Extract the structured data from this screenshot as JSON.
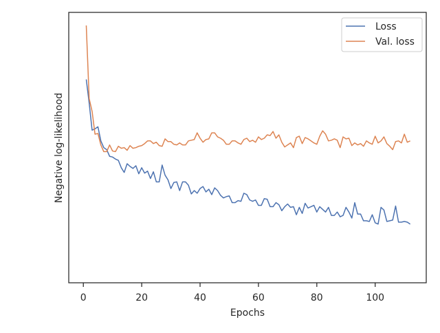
{
  "chart_data": {
    "type": "line",
    "title": "",
    "xlabel": "Epochs",
    "ylabel": "Negative log-likelihood",
    "xlim": [
      -5,
      117.5
    ],
    "ylim": [
      0,
      1
    ],
    "x_ticks": [
      0,
      20,
      40,
      60,
      80,
      100
    ],
    "y_ticks_visible": false,
    "grid": false,
    "legend_position": "top-right",
    "series": [
      {
        "name": "Loss",
        "color": "#4c72b0",
        "values": [
          0.7815,
          0.6857,
          0.5761,
          0.5815,
          0.5897,
          0.5326,
          0.5054,
          0.4973,
          0.4701,
          0.4674,
          0.4592,
          0.4538,
          0.4239,
          0.4049,
          0.4402,
          0.4293,
          0.4212,
          0.4321,
          0.3995,
          0.4239,
          0.4022,
          0.4103,
          0.3804,
          0.4076,
          0.3668,
          0.3668,
          0.4348,
          0.394,
          0.375,
          0.3397,
          0.3641,
          0.3668,
          0.3315,
          0.3668,
          0.3668,
          0.3533,
          0.3179,
          0.3315,
          0.3207,
          0.3397,
          0.3478,
          0.3261,
          0.337,
          0.3152,
          0.3424,
          0.3315,
          0.3125,
          0.3016,
          0.3071,
          0.3098,
          0.2826,
          0.2826,
          0.2908,
          0.288,
          0.3207,
          0.3152,
          0.2935,
          0.288,
          0.2935,
          0.2717,
          0.2717,
          0.2989,
          0.2962,
          0.2663,
          0.2663,
          0.2826,
          0.2745,
          0.25,
          0.2663,
          0.2772,
          0.2636,
          0.2663,
          0.2337,
          0.2636,
          0.2391,
          0.2799,
          0.2609,
          0.2663,
          0.2717,
          0.2446,
          0.2663,
          0.2554,
          0.2446,
          0.2636,
          0.231,
          0.231,
          0.2446,
          0.2255,
          0.231,
          0.2636,
          0.2446,
          0.2201,
          0.2826,
          0.2364,
          0.2364,
          0.2092,
          0.2092,
          0.2065,
          0.2337,
          0.2011,
          0.1957,
          0.2636,
          0.2527,
          0.2065,
          0.2092,
          0.212,
          0.269,
          0.2038,
          0.2038,
          0.2065,
          0.2038,
          0.1957
        ]
      },
      {
        "name": "Val. loss",
        "color": "#dd8452",
        "values": [
          1.0,
          0.7038,
          0.6522,
          0.5598,
          0.5625,
          0.5163,
          0.4891,
          0.4891,
          0.5163,
          0.4918,
          0.4891,
          0.5109,
          0.5027,
          0.5054,
          0.4946,
          0.5136,
          0.5027,
          0.5054,
          0.5109,
          0.5136,
          0.5217,
          0.5326,
          0.5326,
          0.5217,
          0.5272,
          0.5136,
          0.5109,
          0.5408,
          0.5299,
          0.5299,
          0.519,
          0.5163,
          0.5245,
          0.5163,
          0.5163,
          0.5326,
          0.5353,
          0.538,
          0.5652,
          0.5435,
          0.5272,
          0.538,
          0.5408,
          0.5652,
          0.5652,
          0.5489,
          0.5435,
          0.5353,
          0.519,
          0.519,
          0.5326,
          0.5326,
          0.5245,
          0.519,
          0.538,
          0.5435,
          0.5299,
          0.5353,
          0.5272,
          0.5489,
          0.538,
          0.5435,
          0.5571,
          0.5543,
          0.5707,
          0.5435,
          0.5571,
          0.5272,
          0.5082,
          0.5163,
          0.5245,
          0.5054,
          0.5462,
          0.5516,
          0.5217,
          0.5462,
          0.5408,
          0.5326,
          0.5245,
          0.519,
          0.5516,
          0.5734,
          0.5598,
          0.5326,
          0.5353,
          0.5408,
          0.5353,
          0.5054,
          0.5489,
          0.5408,
          0.5435,
          0.5136,
          0.5245,
          0.5163,
          0.5217,
          0.5109,
          0.5326,
          0.5245,
          0.519,
          0.5516,
          0.5245,
          0.5326,
          0.5489,
          0.5217,
          0.5109,
          0.4973,
          0.5299,
          0.5326,
          0.5245,
          0.5598,
          0.5272,
          0.5326
        ]
      }
    ]
  }
}
